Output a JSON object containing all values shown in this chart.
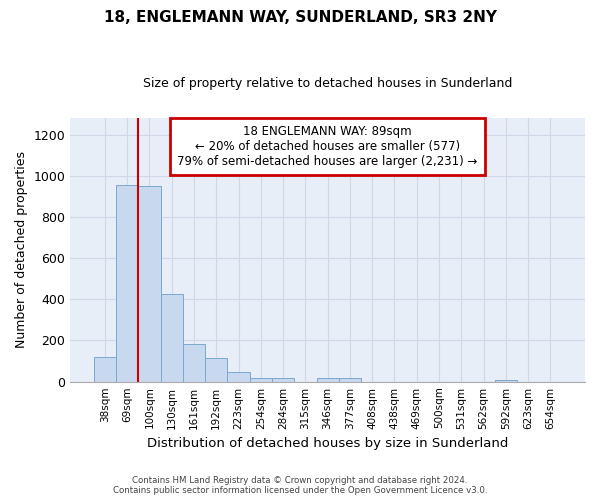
{
  "title": "18, ENGLEMANN WAY, SUNDERLAND, SR3 2NY",
  "subtitle": "Size of property relative to detached houses in Sunderland",
  "xlabel": "Distribution of detached houses by size in Sunderland",
  "ylabel": "Number of detached properties",
  "categories": [
    "38sqm",
    "69sqm",
    "100sqm",
    "130sqm",
    "161sqm",
    "192sqm",
    "223sqm",
    "254sqm",
    "284sqm",
    "315sqm",
    "346sqm",
    "377sqm",
    "408sqm",
    "438sqm",
    "469sqm",
    "500sqm",
    "531sqm",
    "562sqm",
    "592sqm",
    "623sqm",
    "654sqm"
  ],
  "values": [
    120,
    955,
    948,
    428,
    182,
    115,
    45,
    18,
    18,
    0,
    16,
    16,
    0,
    0,
    0,
    0,
    0,
    0,
    8,
    0,
    0
  ],
  "bar_color": "#c8d8ee",
  "bar_edge_color": "#7aa8cc",
  "grid_color": "#d0d8e8",
  "bg_color": "#e8eef8",
  "annotation_box_text": "18 ENGLEMANN WAY: 89sqm\n← 20% of detached houses are smaller (577)\n79% of semi-detached houses are larger (2,231) →",
  "annotation_box_color": "#cc0000",
  "red_line_x": 1.5,
  "ylim": [
    0,
    1280
  ],
  "yticks": [
    0,
    200,
    400,
    600,
    800,
    1000,
    1200
  ],
  "footer_line1": "Contains HM Land Registry data © Crown copyright and database right 2024.",
  "footer_line2": "Contains public sector information licensed under the Open Government Licence v3.0."
}
